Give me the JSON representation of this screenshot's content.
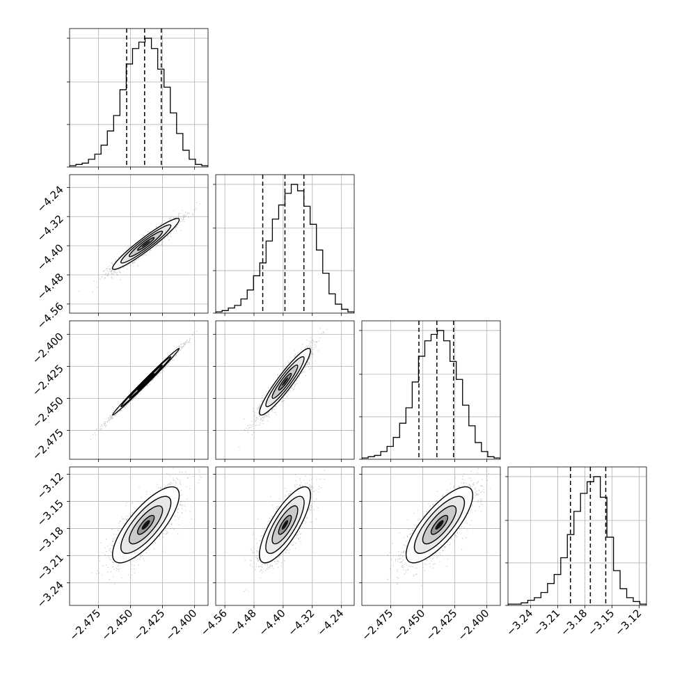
{
  "chart_data": {
    "type": "corner",
    "title": "",
    "grid": true,
    "n_params": 4,
    "parameters": [
      {
        "label": "",
        "range": [
          -2.4975,
          -2.3895
        ],
        "ticks": [
          -2.475,
          -2.45,
          -2.425,
          -2.4
        ],
        "tick_labels": [
          "−2.475",
          "−2.450",
          "−2.425",
          "−2.400"
        ],
        "quantiles": [
          -2.453,
          -2.439,
          -2.426
        ],
        "hist_ticks": [
          0.0,
          0.33,
          0.66,
          1.0
        ],
        "hist_levels": [
          0.01,
          0.02,
          0.03,
          0.06,
          0.1,
          0.17,
          0.28,
          0.4,
          0.6,
          0.8,
          0.92,
          0.97,
          1.0,
          0.92,
          0.76,
          0.62,
          0.42,
          0.26,
          0.13,
          0.06,
          0.02,
          0.01
        ]
      },
      {
        "label": "",
        "range": [
          -4.585,
          -4.205
        ],
        "ticks": [
          -4.56,
          -4.48,
          -4.4,
          -4.32,
          -4.24
        ],
        "tick_labels": [
          "−4.56",
          "−4.48",
          "−4.40",
          "−4.32",
          "−4.24"
        ],
        "quantiles": [
          -4.456,
          -4.395,
          -4.343
        ],
        "hist_ticks": [
          0.0,
          0.33,
          0.66,
          1.0
        ],
        "hist_levels": [
          0.01,
          0.02,
          0.04,
          0.06,
          0.11,
          0.18,
          0.29,
          0.39,
          0.56,
          0.73,
          0.84,
          0.93,
          1.0,
          0.95,
          0.83,
          0.69,
          0.49,
          0.31,
          0.15,
          0.07,
          0.03,
          0.01
        ]
      },
      {
        "label": "",
        "range": [
          -2.4975,
          -2.3895
        ],
        "ticks": [
          -2.475,
          -2.45,
          -2.425,
          -2.4
        ],
        "tick_labels": [
          "−2.475",
          "−2.450",
          "−2.425",
          "−2.400"
        ],
        "quantiles": [
          -2.453,
          -2.439,
          -2.426
        ],
        "hist_ticks": [
          0.0,
          0.33,
          0.66,
          1.0
        ],
        "hist_levels": [
          0.01,
          0.02,
          0.03,
          0.06,
          0.1,
          0.17,
          0.28,
          0.4,
          0.6,
          0.8,
          0.92,
          0.97,
          1.0,
          0.92,
          0.76,
          0.62,
          0.42,
          0.26,
          0.13,
          0.06,
          0.02,
          0.01
        ]
      },
      {
        "label": "",
        "range": [
          -3.265,
          -3.112
        ],
        "ticks": [
          -3.24,
          -3.21,
          -3.18,
          -3.15,
          -3.12
        ],
        "tick_labels": [
          "−3.24",
          "−3.21",
          "−3.18",
          "−3.15",
          "−3.12"
        ],
        "quantiles": [
          -3.196,
          -3.174,
          -3.157
        ],
        "hist_ticks": [
          0.0,
          0.33,
          0.66,
          1.0
        ],
        "hist_levels": [
          0.01,
          0.01,
          0.02,
          0.04,
          0.06,
          0.1,
          0.17,
          0.24,
          0.37,
          0.55,
          0.73,
          0.87,
          0.96,
          1.0,
          0.84,
          0.53,
          0.27,
          0.13,
          0.06,
          0.03,
          0.01
        ]
      }
    ],
    "pairs": [
      {
        "row": 1,
        "col": 0,
        "mean": [
          -2.438,
          -4.395
        ],
        "sd": [
          0.013,
          0.035
        ],
        "rho": 0.95
      },
      {
        "row": 2,
        "col": 0,
        "mean": [
          -2.438,
          -2.437
        ],
        "sd": [
          0.013,
          0.013
        ],
        "rho": 0.995
      },
      {
        "row": 2,
        "col": 1,
        "mean": [
          -4.395,
          -2.437
        ],
        "sd": [
          0.035,
          0.013
        ],
        "rho": 0.93
      },
      {
        "row": 3,
        "col": 0,
        "mean": [
          -2.438,
          -3.176
        ],
        "sd": [
          0.013,
          0.021
        ],
        "rho": 0.78
      },
      {
        "row": 3,
        "col": 1,
        "mean": [
          -4.395,
          -3.176
        ],
        "sd": [
          0.035,
          0.021
        ],
        "rho": 0.78
      },
      {
        "row": 3,
        "col": 2,
        "mean": [
          -2.437,
          -3.176
        ],
        "sd": [
          0.013,
          0.021
        ],
        "rho": 0.78
      }
    ],
    "contour_levels_sigma": [
      0.5,
      1.0,
      1.5,
      2.0
    ]
  },
  "colors": {
    "line": "#000000",
    "grid": "#b0b0b0",
    "points": "#9a9a9a",
    "frame": "#000000"
  }
}
